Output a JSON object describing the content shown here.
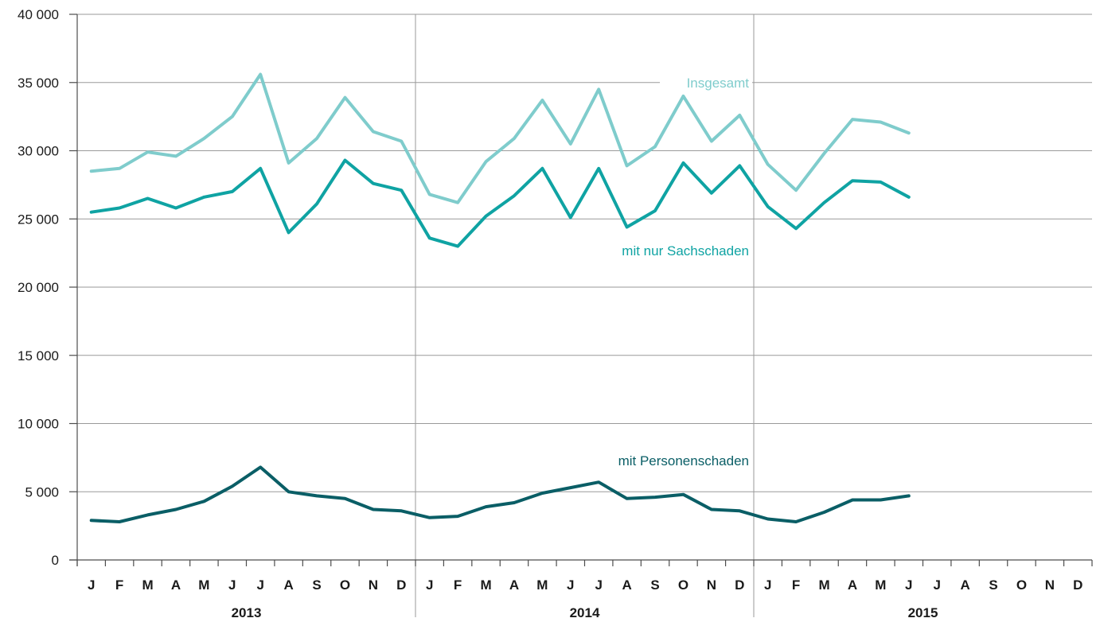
{
  "chart_data": {
    "type": "line",
    "title": "",
    "xlabel": "",
    "ylabel": "",
    "ylim": [
      0,
      40000
    ],
    "y_ticks": [
      0,
      5000,
      10000,
      15000,
      20000,
      25000,
      30000,
      35000,
      40000
    ],
    "y_tick_labels": [
      "0",
      "5 000",
      "10 000",
      "15 000",
      "20 000",
      "25 000",
      "30 000",
      "35 000",
      "40 000"
    ],
    "grid": true,
    "month_labels": [
      "J",
      "F",
      "M",
      "A",
      "M",
      "J",
      "J",
      "A",
      "S",
      "O",
      "N",
      "D",
      "J",
      "F",
      "M",
      "A",
      "M",
      "J",
      "J",
      "A",
      "S",
      "O",
      "N",
      "D",
      "J",
      "F",
      "M",
      "A",
      "M",
      "J",
      "J",
      "A",
      "S",
      "O",
      "N",
      "D"
    ],
    "years": [
      "2013",
      "2014",
      "2015"
    ],
    "series": [
      {
        "name": "Insgesamt",
        "color": "#7fcccc",
        "values": [
          28500,
          28700,
          29900,
          29600,
          30900,
          32500,
          35600,
          29100,
          30900,
          33900,
          31400,
          30700,
          26800,
          26200,
          29200,
          30900,
          33700,
          30500,
          34500,
          28900,
          30300,
          34000,
          30700,
          32600,
          29000,
          27100,
          29800,
          32300,
          32100,
          31300
        ]
      },
      {
        "name": "mit nur Sachschaden",
        "color": "#0fa3a3",
        "values": [
          25500,
          25800,
          26500,
          25800,
          26600,
          27000,
          28700,
          24000,
          26100,
          29300,
          27600,
          27100,
          23600,
          23000,
          25200,
          26700,
          28700,
          25100,
          28700,
          24400,
          25600,
          29100,
          26900,
          28900,
          25900,
          24300,
          26200,
          27800,
          27700,
          26600
        ]
      },
      {
        "name": "mit Personenschaden",
        "color": "#0a5e66",
        "values": [
          2900,
          2800,
          3300,
          3700,
          4300,
          5400,
          6800,
          5000,
          4700,
          4500,
          3700,
          3600,
          3100,
          3200,
          3900,
          4200,
          4900,
          5300,
          5700,
          4500,
          4600,
          4800,
          3700,
          3600,
          3000,
          2800,
          3500,
          4400,
          4400,
          4700
        ]
      }
    ]
  }
}
